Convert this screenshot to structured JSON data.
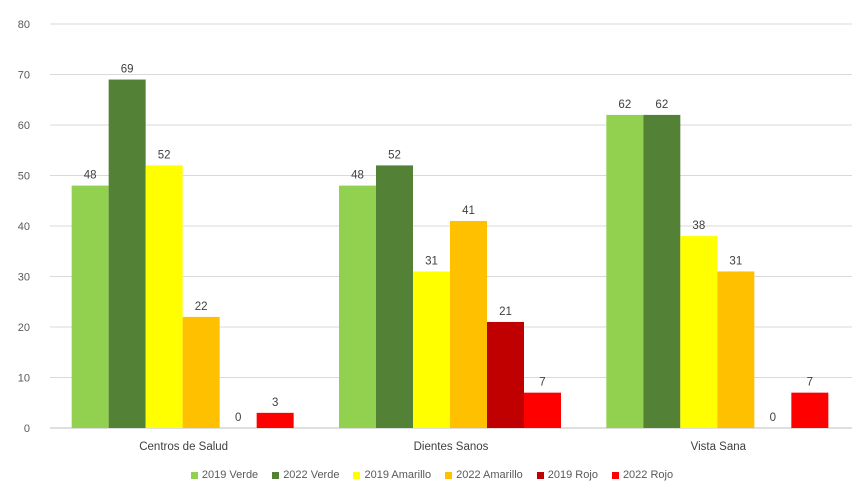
{
  "chart_data": {
    "type": "bar",
    "categories": [
      "Centros de Salud",
      "Dientes Sanos",
      "Vista Sana"
    ],
    "series": [
      {
        "name": "2019 Verde",
        "color": "#92D050",
        "values": [
          48,
          48,
          62
        ]
      },
      {
        "name": "2022 Verde",
        "color": "#538135",
        "values": [
          69,
          52,
          62
        ]
      },
      {
        "name": "2019 Amarillo",
        "color": "#FFFF00",
        "values": [
          52,
          31,
          38
        ]
      },
      {
        "name": "2022 Amarillo",
        "color": "#FFC000",
        "values": [
          22,
          41,
          31
        ]
      },
      {
        "name": "2019 Rojo",
        "color": "#C00000",
        "values": [
          0,
          21,
          0
        ]
      },
      {
        "name": "2022 Rojo",
        "color": "#FF0000",
        "values": [
          3,
          7,
          7
        ]
      }
    ],
    "yticks": [
      "0",
      "10",
      "20",
      "30",
      "40",
      "50",
      "60",
      "70",
      "80"
    ],
    "ylim": [
      0,
      80
    ],
    "grid": true,
    "legend_position": "bottom",
    "data_labels": true,
    "title": "",
    "xlabel": "",
    "ylabel": ""
  }
}
